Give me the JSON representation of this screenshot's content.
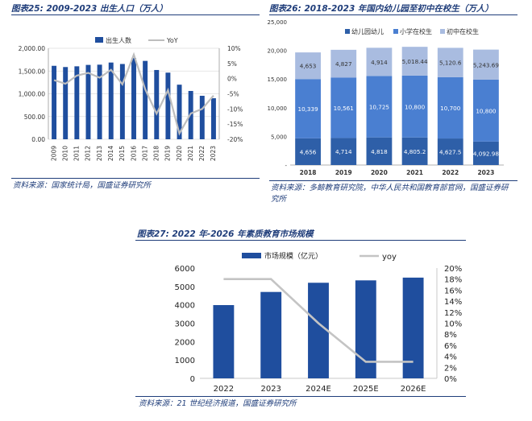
{
  "chart_data": [
    {
      "type": "bar",
      "title": "图表25:  2009-2023 出生人口（万人）",
      "categories": [
        "2009",
        "2010",
        "2011",
        "2012",
        "2013",
        "2014",
        "2015",
        "2016",
        "2017",
        "2018",
        "2019",
        "2020",
        "2021",
        "2022",
        "2023"
      ],
      "series": [
        {
          "name": "出生人数",
          "type": "bar",
          "axis": "left",
          "color": "#1f4e9e",
          "values": [
            1615,
            1588,
            1604,
            1635,
            1640,
            1687,
            1655,
            1786,
            1723,
            1523,
            1465,
            1200,
            1062,
            956,
            902
          ]
        },
        {
          "name": "YoY",
          "type": "line",
          "axis": "right",
          "color": "#bdbdbd",
          "values": [
            -0.5,
            -1.7,
            1.0,
            1.9,
            0.3,
            2.9,
            -1.9,
            7.9,
            -3.5,
            -11.6,
            -3.8,
            -18.1,
            -11.5,
            -10.0,
            -5.6
          ]
        }
      ],
      "left_axis": {
        "ticks": [
          "0.00",
          "500.00",
          "1,000.00",
          "1,500.00",
          "2,000.00"
        ],
        "ylim": [
          0,
          2000
        ]
      },
      "right_axis": {
        "ticks": [
          "-20%",
          "-15%",
          "-10%",
          "-5%",
          "0%",
          "5%",
          "10%"
        ],
        "ylim": [
          -20,
          10
        ]
      },
      "legend": "top-center",
      "source": "资料来源：国家统计局，国盛证券研究所"
    },
    {
      "type": "bar",
      "stacked": true,
      "title": "图表26:  2018-2023 年国内幼儿园至初中在校生（万人）",
      "categories": [
        "2018",
        "2019",
        "2020",
        "2021",
        "2022",
        "2023"
      ],
      "series": [
        {
          "name": "幼儿园幼儿",
          "color": "#2e5fa8",
          "values": [
            4656,
            4714,
            4818,
            4805.2,
            4627.5,
            4092.98
          ],
          "labels": [
            "4,656",
            "4,714",
            "4,818",
            "4,805.2",
            "4,627.5",
            "4,092.98"
          ]
        },
        {
          "name": "小学在校生",
          "color": "#4a7fd1",
          "values": [
            10339,
            10561,
            10725,
            10800,
            10700,
            10800
          ],
          "labels": [
            "10,339",
            "10,561",
            "10,725",
            "10,800",
            "10,700",
            "10,800"
          ]
        },
        {
          "name": "初中在校生",
          "color": "#a9bce0",
          "values": [
            4653,
            4827,
            4914,
            5018.44,
            5120.6,
            5243.69
          ],
          "labels": [
            "4,653",
            "4,827",
            "4,914",
            "5,018.44",
            "5,120.6",
            "5,243.69"
          ]
        }
      ],
      "y_axis": {
        "ticks": [
          "-",
          "5,000",
          "10,000",
          "15,000",
          "20,000",
          "25,000"
        ],
        "ylim": [
          0,
          25000
        ]
      },
      "legend": "top-center",
      "source": "资料来源：多鲸教育研究院，中华人民共和国教育部官网，国盛证券研究所"
    },
    {
      "type": "bar",
      "title": "图表27:  2022 年-2026 年素质教育市场规模",
      "categories": [
        "2022",
        "2023",
        "2024E",
        "2025E",
        "2026E"
      ],
      "series": [
        {
          "name": "市场规模（亿元）",
          "type": "bar",
          "axis": "left",
          "color": "#1f4e9e",
          "values": [
            3985,
            4700,
            5200,
            5330,
            5480
          ]
        },
        {
          "name": "yoy",
          "type": "line",
          "axis": "right",
          "color": "#c4c4c4",
          "values": [
            18,
            18,
            10,
            3,
            3
          ]
        }
      ],
      "left_axis": {
        "ticks": [
          "0",
          "1000",
          "2000",
          "3000",
          "4000",
          "5000",
          "6000"
        ],
        "ylim": [
          0,
          6000
        ]
      },
      "right_axis": {
        "ticks": [
          "0%",
          "2%",
          "4%",
          "6%",
          "8%",
          "10%",
          "12%",
          "14%",
          "16%",
          "18%",
          "20%"
        ],
        "ylim": [
          0,
          20
        ]
      },
      "legend": "top-center",
      "source": "资料来源：21 世纪经济报道，国盛证券研究所"
    }
  ]
}
